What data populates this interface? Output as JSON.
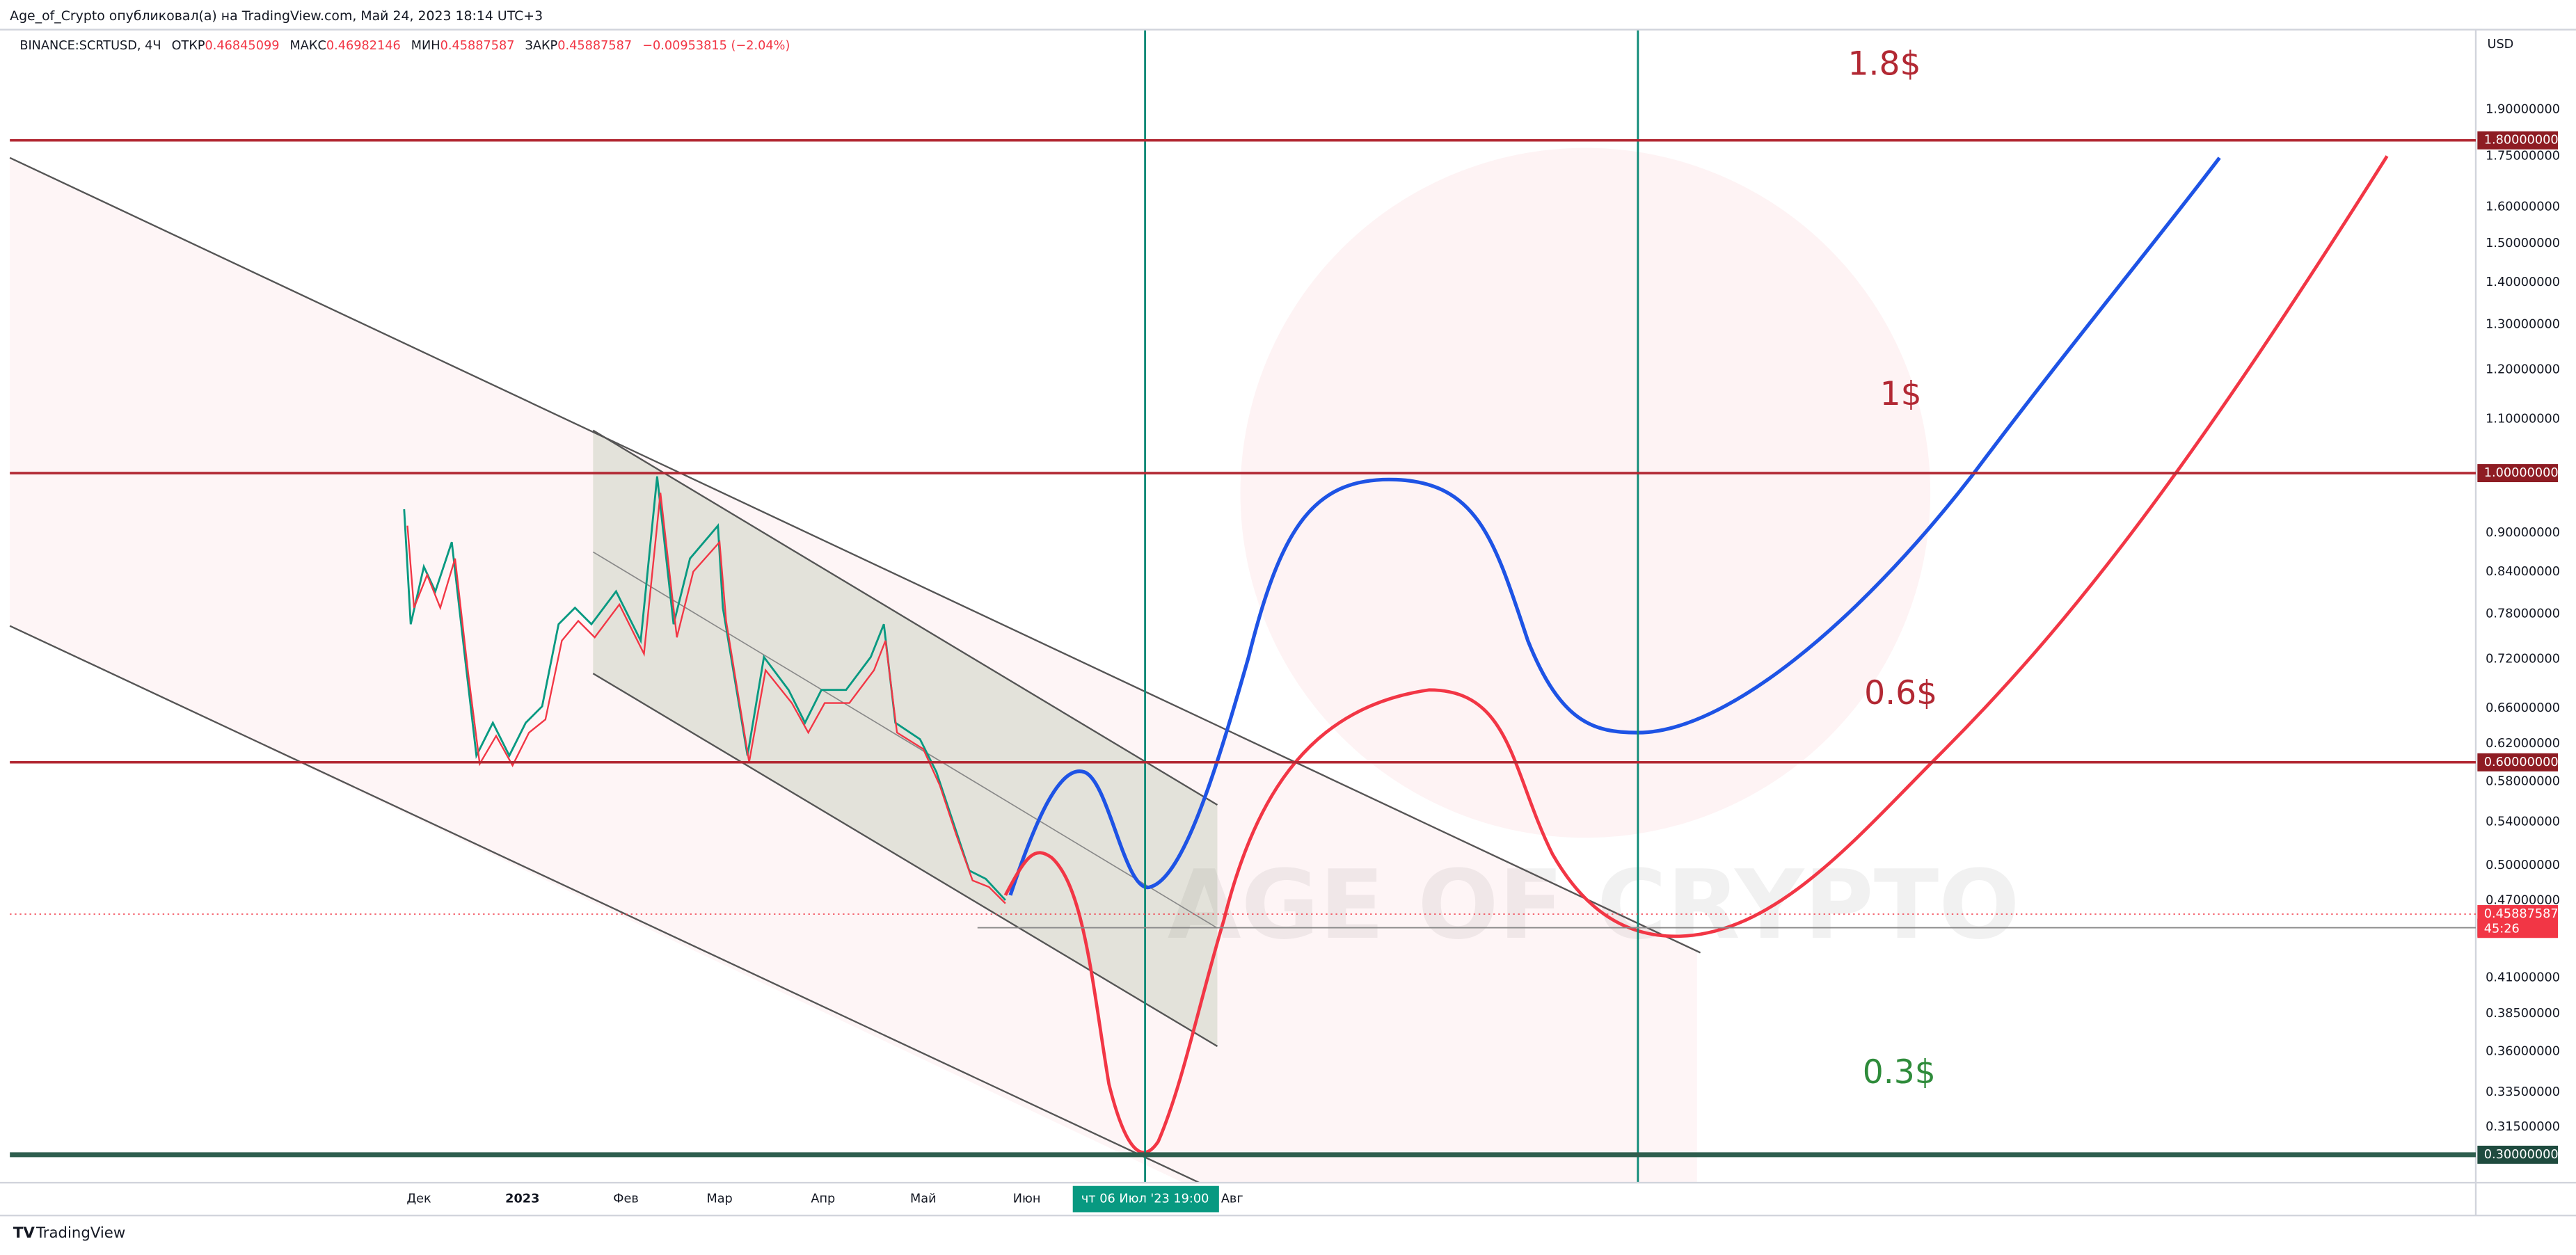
{
  "header": {
    "publisher": "Age_of_Crypto опубликовал(а) на TradingView.com, Май 24, 2023 18:14 UTC+3"
  },
  "legend": {
    "symbol": "BINANCE:SCRTUSD, 4Ч",
    "open_label": "ОТКР",
    "open": "0.46845099",
    "high_label": "МАКС",
    "high": "0.46982146",
    "low_label": "МИН",
    "low": "0.45887587",
    "close_label": "ЗАКР",
    "close": "0.45887587",
    "change": "−0.00953815 (−2.04%)"
  },
  "price_axis": {
    "currency": "USD",
    "ticks": [
      "1.90000000",
      "1.75000000",
      "1.60000000",
      "1.50000000",
      "1.40000000",
      "1.30000000",
      "1.20000000",
      "1.10000000",
      "0.90000000",
      "0.84000000",
      "0.78000000",
      "0.72000000",
      "0.66000000",
      "0.62000000",
      "0.58000000",
      "0.54000000",
      "0.50000000",
      "0.47000000",
      "0.41000000",
      "0.38500000",
      "0.36000000",
      "0.33500000",
      "0.31500000"
    ],
    "levels": [
      "1.80000000",
      "1.00000000",
      "0.60000000"
    ],
    "support": "0.30000000",
    "last_price": "0.45887587",
    "countdown": "45:26",
    "horizontal_line": "0.44800000"
  },
  "time_axis": {
    "labels": [
      "Дек",
      "2023",
      "Фев",
      "Мар",
      "Апр",
      "Май",
      "Июн",
      "Авг"
    ],
    "crosshair": "чт 06 Июл '23   19:00"
  },
  "annotations": [
    "1.8$",
    "1$",
    "0.6$",
    "0.3$"
  ],
  "watermark": "AGE OF CRYPTO",
  "footer": {
    "brand": "TradingView"
  }
}
